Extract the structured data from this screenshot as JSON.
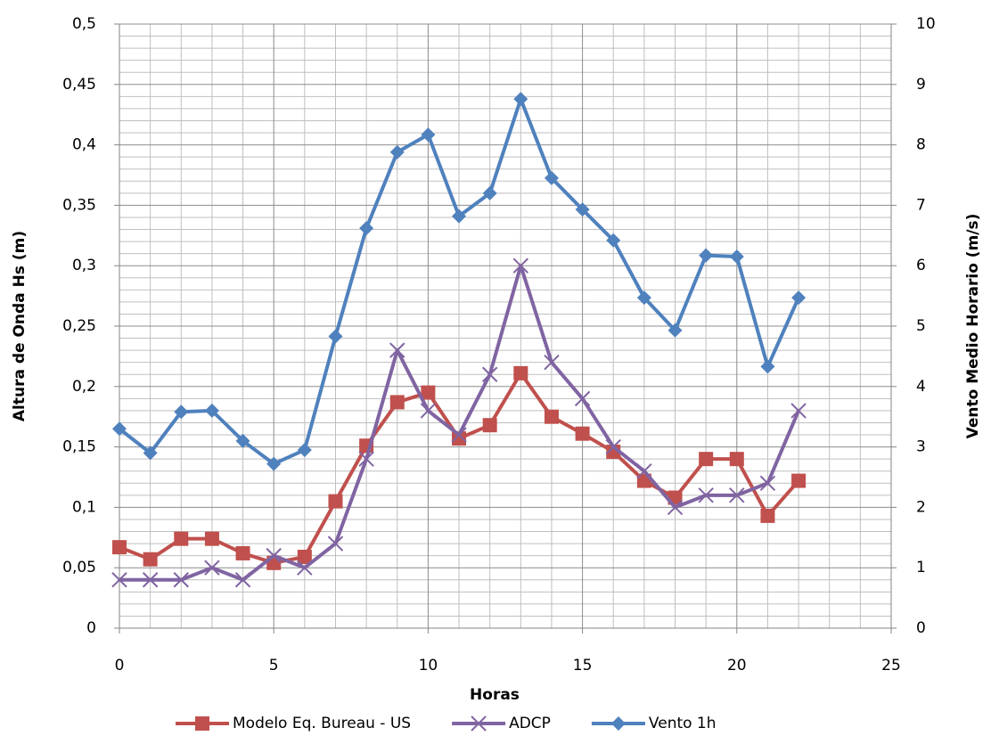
{
  "chart_data": {
    "type": "line",
    "x_label": "Horas",
    "y_label": "Altura de Onda Hs (m)",
    "y2_label": "Vento Medio Horario (m/s)",
    "x": [
      0,
      1,
      2,
      3,
      4,
      5,
      6,
      7,
      8,
      9,
      10,
      11,
      12,
      13,
      14,
      15,
      16,
      17,
      18,
      19,
      20,
      21,
      22
    ],
    "series": [
      {
        "name": "Modelo Eq. Bureau - US",
        "color": "#c0504d",
        "marker": "square",
        "values": [
          0.067,
          0.057,
          0.074,
          0.074,
          0.062,
          0.054,
          0.059,
          0.105,
          0.151,
          0.187,
          0.195,
          0.157,
          0.168,
          0.211,
          0.175,
          0.161,
          0.146,
          0.122,
          0.108,
          0.14,
          0.14,
          0.093,
          0.122
        ]
      },
      {
        "name": "ADCP",
        "color": "#8064a2",
        "marker": "x",
        "values": [
          0.04,
          0.04,
          0.04,
          0.05,
          0.04,
          0.06,
          0.05,
          0.07,
          0.14,
          0.23,
          0.18,
          0.16,
          0.21,
          0.3,
          0.22,
          0.19,
          0.15,
          0.13,
          0.1,
          0.11,
          0.11,
          0.12,
          0.18
        ]
      },
      {
        "name": "Vento 1h",
        "color": "#4f81bd",
        "marker": "diamond",
        "axis": "y2",
        "values": [
          3.3,
          2.9,
          3.58,
          3.6,
          3.1,
          2.72,
          2.95,
          4.83,
          6.62,
          7.88,
          8.17,
          6.82,
          7.2,
          8.76,
          7.45,
          6.93,
          6.42,
          5.47,
          4.93,
          6.17,
          6.15,
          4.33,
          5.47
        ]
      }
    ],
    "xlim": [
      0,
      25
    ],
    "xticks": [
      0,
      5,
      10,
      15,
      20,
      25
    ],
    "ylim": [
      0,
      0.5
    ],
    "yticks": [
      0,
      {
        "value": 0.05,
        "label": "0,05"
      },
      {
        "value": 0.1,
        "label": "0,1"
      },
      {
        "value": 0.15,
        "label": "0,15"
      },
      {
        "value": 0.2,
        "label": "0,2"
      },
      {
        "value": 0.25,
        "label": "0,25"
      },
      {
        "value": 0.3,
        "label": "0,3"
      },
      {
        "value": 0.35,
        "label": "0,35"
      },
      {
        "value": 0.4,
        "label": "0,4"
      },
      {
        "value": 0.45,
        "label": "0,45"
      },
      {
        "value": 0.5,
        "label": "0,5"
      }
    ],
    "y2lim": [
      0,
      10
    ],
    "y2ticks": [
      0,
      1,
      2,
      3,
      4,
      5,
      6,
      7,
      8,
      9,
      10
    ],
    "grid": true,
    "legend": "bottom"
  }
}
